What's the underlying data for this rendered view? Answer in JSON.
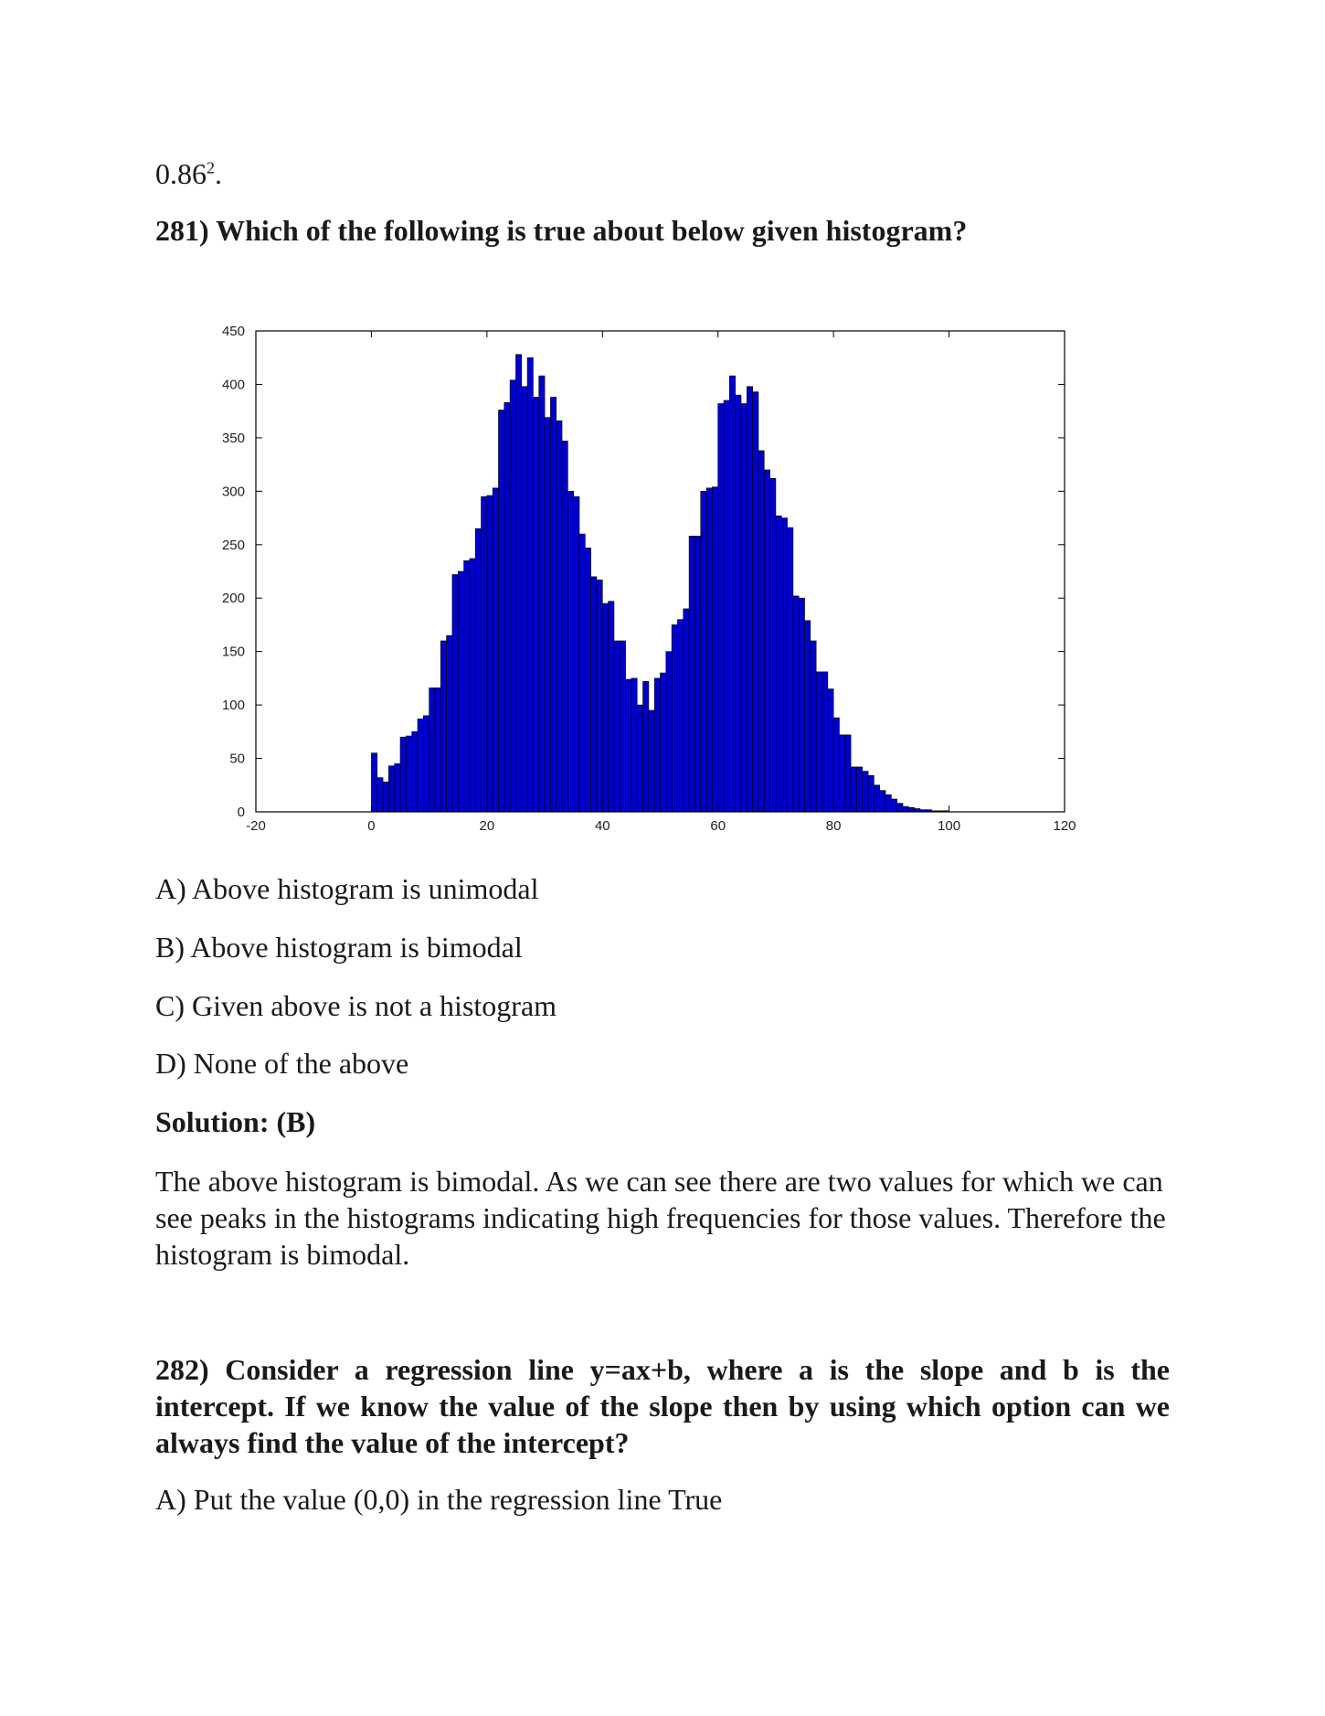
{
  "prev_answer": {
    "value": "0.86",
    "exponent": "2",
    "suffix": "."
  },
  "q281": {
    "question": "281) Which of the following is true about below given histogram?",
    "options": [
      "A) Above histogram is unimodal",
      "B) Above histogram is bimodal",
      "C) Given above is not a histogram",
      "D) None of the above"
    ],
    "solution_label": "Solution: (B)",
    "explanation": "The above histogram is bimodal. As we can see there are two values for which we can see peaks in the histograms indicating high frequencies for those values. Therefore the histogram is bimodal."
  },
  "q282": {
    "question": "282) Consider a regression line y=ax+b, where a is the slope and b is the intercept. If we know the value of the slope then by using which option can we always find the value of the intercept?",
    "options": [
      "A) Put the value (0,0) in the regression line True"
    ]
  },
  "chart_data": {
    "type": "bar",
    "title": "",
    "xlabel": "",
    "ylabel": "",
    "xlim": [
      -20,
      120
    ],
    "ylim": [
      0,
      450
    ],
    "xticks": [
      -20,
      0,
      20,
      40,
      60,
      80,
      100,
      120
    ],
    "yticks": [
      0,
      50,
      100,
      150,
      200,
      250,
      300,
      350,
      400,
      450
    ],
    "bar_color": "#0000cc",
    "bin_start": 0,
    "bin_width": 1,
    "series": [
      {
        "values": [
          55,
          32,
          28,
          43,
          45,
          70,
          71,
          75,
          87,
          90,
          116,
          116,
          160,
          165,
          222,
          225,
          235,
          237,
          265,
          295,
          296,
          303,
          376,
          383,
          404,
          428,
          398,
          425,
          388,
          408,
          369,
          388,
          366,
          347,
          300,
          295,
          260,
          247,
          220,
          217,
          195,
          197,
          160,
          160,
          124,
          125,
          100,
          122,
          95,
          125,
          130,
          150,
          175,
          180,
          190,
          258,
          258,
          300,
          303,
          304,
          382,
          385,
          408,
          390,
          382,
          398,
          393,
          338,
          320,
          312,
          277,
          275,
          266,
          202,
          200,
          179,
          160,
          131,
          131,
          115,
          88,
          72,
          72,
          42,
          42,
          38,
          34,
          25,
          20,
          16,
          12,
          8,
          5,
          4,
          3,
          2,
          2,
          1,
          1,
          1
        ]
      }
    ]
  }
}
